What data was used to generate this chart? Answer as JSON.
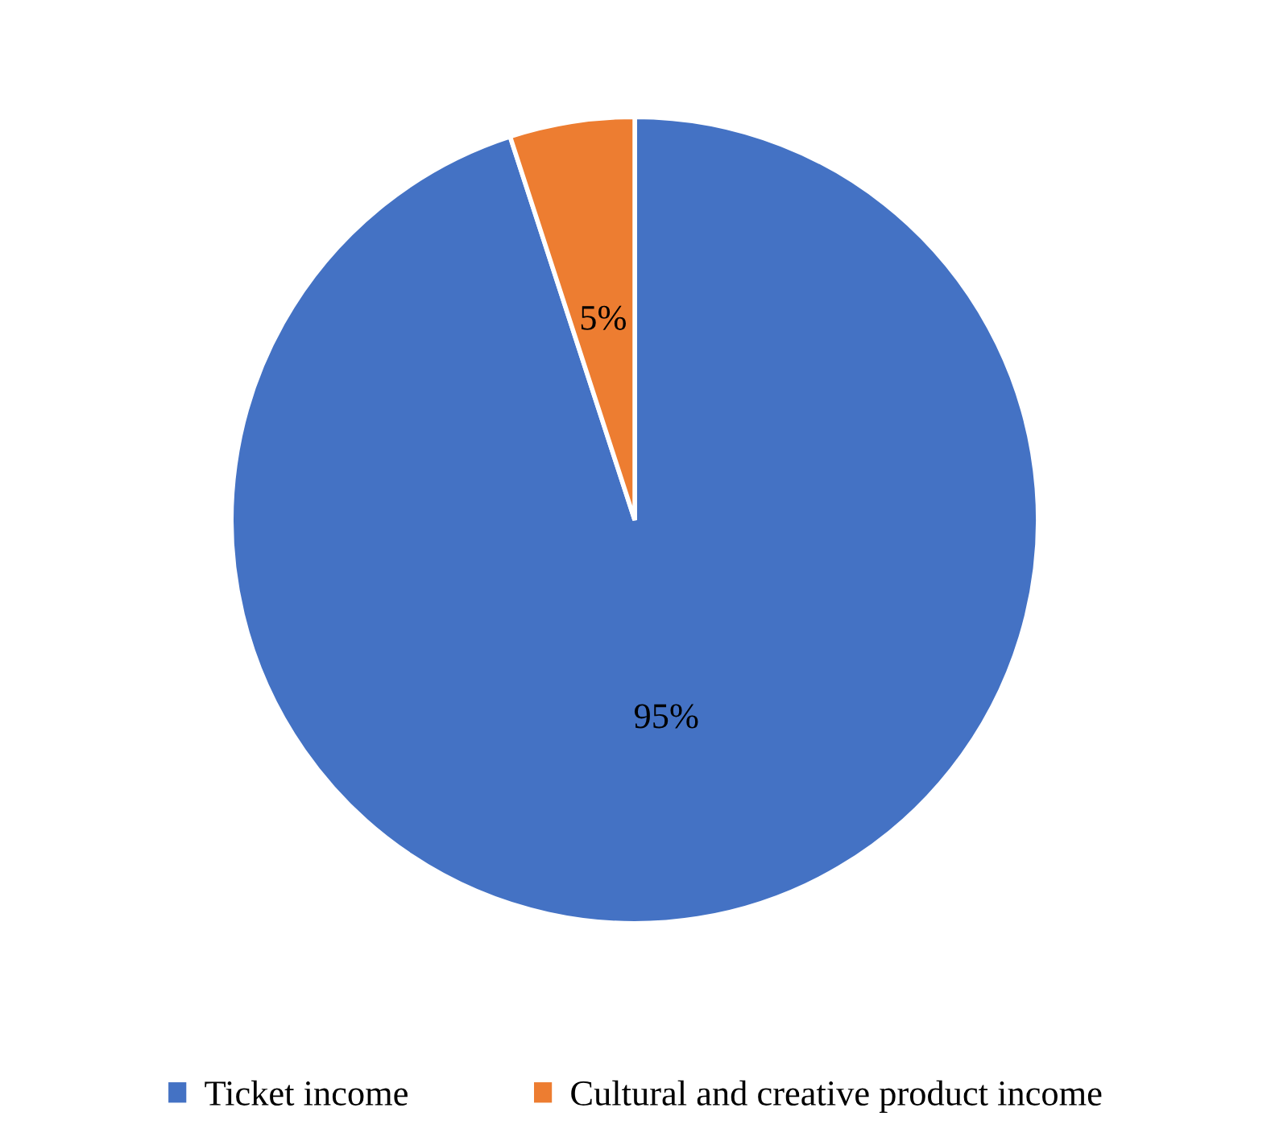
{
  "chart_data": {
    "type": "pie",
    "categories": [
      "Ticket income",
      "Cultural and creative product income"
    ],
    "values": [
      95,
      5
    ],
    "colors": [
      "#4472c4",
      "#ed7d31"
    ],
    "value_labels": [
      "95%",
      "5%"
    ],
    "legend": "bottom"
  }
}
